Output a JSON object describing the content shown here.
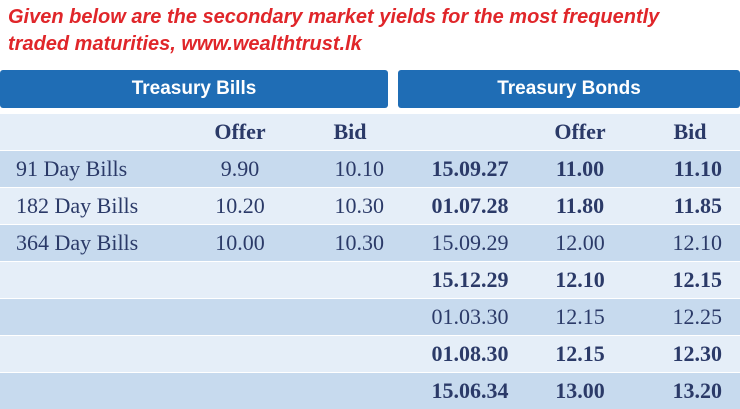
{
  "header": {
    "lines": [
      "Given below are the secondary market yields for the most frequently",
      "traded maturities, www.wealthtrust.lk"
    ]
  },
  "table": {
    "bills": {
      "title": "Treasury Bills",
      "columns": [
        "Offer",
        "Bid"
      ],
      "rows": [
        [
          "91 Day Bills",
          "9.90",
          "10.10"
        ],
        [
          "182 Day Bills",
          "10.20",
          "10.30"
        ],
        [
          "364 Day Bills",
          "10.00",
          "10.30"
        ]
      ]
    },
    "bonds": {
      "title": "Treasury Bonds",
      "columns": [
        "Offer",
        "Bid"
      ],
      "rows": [
        {
          "cells": [
            "15.09.27",
            "11.00",
            "11.10"
          ],
          "bold": true
        },
        {
          "cells": [
            "01.07.28",
            "11.80",
            "11.85"
          ],
          "bold": true
        },
        {
          "cells": [
            "15.09.29",
            "12.00",
            "12.10"
          ],
          "bold": false
        },
        {
          "cells": [
            "15.12.29",
            "12.10",
            "12.15"
          ],
          "bold": true
        },
        {
          "cells": [
            "01.03.30",
            "12.15",
            "12.25"
          ],
          "bold": false
        },
        {
          "cells": [
            "01.08.30",
            "12.15",
            "12.30"
          ],
          "bold": true
        },
        {
          "cells": [
            "15.06.34",
            "13.00",
            "13.20"
          ],
          "bold": true
        }
      ]
    }
  }
}
